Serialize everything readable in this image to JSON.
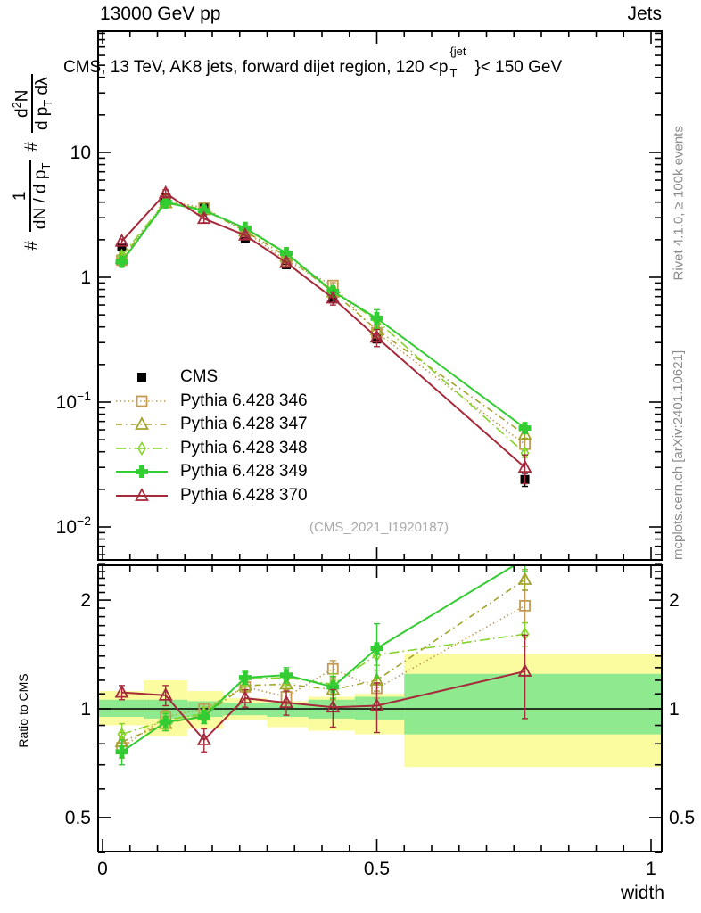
{
  "header": {
    "left": "13000 GeV pp",
    "right": "Jets"
  },
  "title": {
    "prefix": "CMS, 13 TeV, AK8 jets, forward dijet region, 120 <p",
    "sup": "{jet",
    "sub": "T",
    "suffix": "}< 150 GeV"
  },
  "watermark": "(CMS_2021_I1920187)",
  "side_notes": {
    "top_right": "Rivet 4.1.0, ≥ 100k events",
    "bottom_right": "mcplots.cern.ch [arXiv:2401.10621]"
  },
  "ylabel_parts": {
    "hash1": "#",
    "f1_num": "1",
    "f1_den_main": "dN / d p",
    "f1_den_sub": "T",
    "hash2": "#",
    "f2_num_d": "d",
    "f2_num_exp": "2",
    "f2_num_n": "N",
    "f2_den_main": "d p",
    "f2_den_sub": "T",
    "f2_den_tail": " dλ"
  },
  "ratio_ylabel": "Ratio to CMS",
  "xlabel": "width",
  "legend": {
    "items": [
      {
        "series": "cms",
        "label": "CMS"
      },
      {
        "series": "p346",
        "label": "Pythia 6.428 346"
      },
      {
        "series": "p347",
        "label": "Pythia 6.428 347"
      },
      {
        "series": "p348",
        "label": "Pythia 6.428 348"
      },
      {
        "series": "p349",
        "label": "Pythia 6.428 349"
      },
      {
        "series": "p370",
        "label": "Pythia 6.428 370"
      }
    ]
  },
  "axes": {
    "x_ticks": [
      {
        "v": 0,
        "label": "0"
      },
      {
        "v": 0.5,
        "label": "0.5"
      },
      {
        "v": 1,
        "label": "1"
      }
    ],
    "main_y_ticks": [
      {
        "v": 10,
        "label": "10"
      },
      {
        "v": 1,
        "label": "1"
      },
      {
        "v": 0.1,
        "label": "10",
        "exp": "−1"
      },
      {
        "v": 0.01,
        "label": "10",
        "exp": "−2"
      }
    ],
    "ratio_y_ticks": [
      {
        "v": 2,
        "label": "2"
      },
      {
        "v": 1,
        "label": "1"
      },
      {
        "v": 0.5,
        "label": "0.5"
      }
    ]
  },
  "chart_data": {
    "type": "line",
    "title": "CMS, 13 TeV, AK8 jets, forward dijet region, 120 <p_T^{jet}< 150 GeV",
    "xlabel": "width",
    "xlim": [
      -0.01,
      1.02
    ],
    "x_values": [
      0.035,
      0.115,
      0.185,
      0.26,
      0.335,
      0.42,
      0.5,
      0.77
    ],
    "main_panel": {
      "ylog": true,
      "ylim": [
        0.005,
        90
      ],
      "ylabel": "# 1/(dN/dp_T) # d2N/(dp_T dlambda)",
      "series": [
        {
          "id": "cms",
          "label": "CMS",
          "color": "#000000",
          "marker": "square_filled",
          "line": "none",
          "values": [
            1.75,
            4.33,
            3.6,
            2.03,
            1.26,
            0.67,
            0.32,
            0.024
          ],
          "rel_err": [
            0.04,
            0.03,
            0.03,
            0.03,
            0.04,
            0.05,
            0.06,
            0.12
          ]
        },
        {
          "id": "p346",
          "label": "Pythia 6.428 346",
          "color": "#C29A52",
          "marker": "square_open",
          "line": "dotted",
          "values": [
            1.37,
            4.11,
            3.6,
            2.33,
            1.36,
            0.86,
            0.36,
            0.046
          ]
        },
        {
          "id": "p347",
          "label": "Pythia 6.428 347",
          "color": "#A2A42C",
          "marker": "triangle_open",
          "line": "dashdot",
          "values": [
            1.42,
            3.94,
            3.46,
            2.35,
            1.47,
            0.76,
            0.38,
            0.055
          ]
        },
        {
          "id": "p348",
          "label": "Pythia 6.428 348",
          "color": "#85D32A",
          "marker": "diamond_open",
          "line": "longdashdot",
          "values": [
            1.49,
            4.03,
            3.49,
            2.46,
            1.54,
            0.78,
            0.45,
            0.039
          ]
        },
        {
          "id": "p349",
          "label": "Pythia 6.428 349",
          "color": "#33CC33",
          "marker": "cross_filled",
          "line": "solid",
          "values": [
            1.33,
            3.98,
            3.42,
            2.48,
            1.56,
            0.77,
            0.47,
            0.062
          ]
        },
        {
          "id": "p370",
          "label": "Pythia 6.428 370",
          "color": "#A52A3B",
          "marker": "triangle_open",
          "line": "solid",
          "values": [
            1.94,
            4.72,
            2.95,
            2.17,
            1.31,
            0.68,
            0.33,
            0.03
          ]
        }
      ]
    },
    "ratio_panel": {
      "ylog": true,
      "ylim": [
        0.4,
        2.5
      ],
      "ylabel": "Ratio to CMS",
      "reference_line": 1,
      "series": [
        {
          "id": "p346",
          "ratios": [
            0.78,
            0.95,
            1.0,
            1.15,
            1.08,
            1.29,
            1.14,
            1.93
          ],
          "errs": [
            0.05,
            0.04,
            0.03,
            0.04,
            0.05,
            0.07,
            0.07,
            0.2
          ]
        },
        {
          "id": "p347",
          "ratios": [
            0.81,
            0.91,
            0.96,
            1.16,
            1.17,
            1.13,
            1.2,
            2.28
          ],
          "errs": [
            0.05,
            0.04,
            0.03,
            0.04,
            0.05,
            0.07,
            0.08,
            0.15
          ]
        },
        {
          "id": "p348",
          "ratios": [
            0.85,
            0.93,
            0.97,
            1.21,
            1.22,
            1.17,
            1.41,
            1.61
          ],
          "errs": [
            0.06,
            0.05,
            0.04,
            0.05,
            0.06,
            0.08,
            0.09,
            0.12
          ]
        },
        {
          "id": "p349",
          "ratios": [
            0.76,
            0.92,
            0.95,
            1.22,
            1.24,
            1.15,
            1.47,
            2.6
          ],
          "errs": [
            0.06,
            0.05,
            0.04,
            0.05,
            0.06,
            0.08,
            0.25,
            0.2
          ]
        },
        {
          "id": "p370",
          "ratios": [
            1.11,
            1.09,
            0.82,
            1.07,
            1.04,
            1.01,
            1.02,
            1.27
          ],
          "errs": [
            0.05,
            0.07,
            0.06,
            0.06,
            0.08,
            0.12,
            0.16,
            0.33
          ]
        }
      ],
      "bands": {
        "edges": [
          0,
          0.075,
          0.155,
          0.22,
          0.3,
          0.375,
          0.46,
          0.55,
          1.0
        ],
        "yellow_lo": [
          0.9,
          0.84,
          0.88,
          0.93,
          0.89,
          0.87,
          0.85,
          0.69
        ],
        "yellow_hi": [
          1.12,
          1.2,
          1.12,
          1.07,
          1.05,
          1.08,
          1.1,
          1.42
        ],
        "green_lo": [
          0.95,
          0.94,
          0.95,
          0.96,
          0.95,
          0.94,
          0.93,
          0.85
        ],
        "green_hi": [
          1.06,
          1.06,
          1.05,
          1.04,
          1.04,
          1.06,
          1.08,
          1.25
        ],
        "yellow_color": "#FBFB9F",
        "green_color": "#8FEA8F"
      }
    }
  }
}
